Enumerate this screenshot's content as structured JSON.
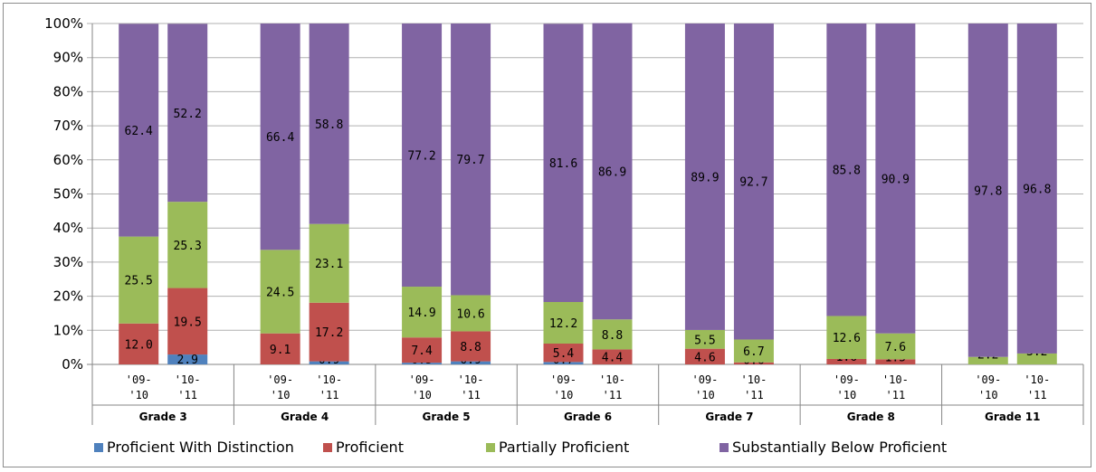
{
  "chart_data": {
    "type": "bar",
    "stacked": true,
    "percent": true,
    "title": "",
    "xlabel": "",
    "ylabel": "",
    "ylim": [
      0,
      100
    ],
    "yticks": [
      "0%",
      "10%",
      "20%",
      "30%",
      "40%",
      "50%",
      "60%",
      "70%",
      "80%",
      "90%",
      "100%"
    ],
    "groups": [
      "Grade 3",
      "Grade 4",
      "Grade 5",
      "Grade 6",
      "Grade 7",
      "Grade 8",
      "Grade 11"
    ],
    "bars": [
      {
        "group": 0,
        "label": [
          "'09-",
          "'10"
        ],
        "values": [
          0,
          12.0,
          25.5,
          62.4
        ],
        "labels": [
          null,
          "12.0",
          "25.5",
          "62.4"
        ]
      },
      {
        "group": 0,
        "label": [
          "'10-",
          "'11"
        ],
        "values": [
          2.9,
          19.5,
          25.3,
          52.2
        ],
        "labels": [
          "2.9",
          "19.5",
          "25.3",
          "52.2"
        ]
      },
      {
        "group": 1,
        "label": [
          "'09-",
          "'10"
        ],
        "values": [
          0,
          9.1,
          24.5,
          66.4
        ],
        "labels": [
          null,
          "9.1",
          "24.5",
          "66.4"
        ]
      },
      {
        "group": 1,
        "label": [
          "'10-",
          "'11"
        ],
        "values": [
          0.9,
          17.2,
          23.1,
          58.8
        ],
        "labels": [
          "0.9",
          "17.2",
          "23.1",
          "58.8"
        ]
      },
      {
        "group": 2,
        "label": [
          "'09-",
          "'10"
        ],
        "values": [
          0.5,
          7.4,
          14.9,
          77.2
        ],
        "labels": [
          "0.5",
          "7.4",
          "14.9",
          "77.2"
        ]
      },
      {
        "group": 2,
        "label": [
          "'10-",
          "'11"
        ],
        "values": [
          0.9,
          8.8,
          10.6,
          79.7
        ],
        "labels": [
          "0.9",
          "8.8",
          "10.6",
          "79.7"
        ]
      },
      {
        "group": 3,
        "label": [
          "'09-",
          "'10"
        ],
        "values": [
          0.7,
          5.4,
          12.2,
          81.6
        ],
        "labels": [
          "0.7",
          "5.4",
          "12.2",
          "81.6"
        ]
      },
      {
        "group": 3,
        "label": [
          "'10-",
          "'11"
        ],
        "values": [
          0,
          4.4,
          8.8,
          86.9
        ],
        "labels": [
          null,
          "4.4",
          "8.8",
          "86.9"
        ]
      },
      {
        "group": 4,
        "label": [
          "'09-",
          "'10"
        ],
        "values": [
          0,
          4.6,
          5.5,
          89.9
        ],
        "labels": [
          null,
          "4.6",
          "5.5",
          "89.9"
        ]
      },
      {
        "group": 4,
        "label": [
          "'10-",
          "'11"
        ],
        "values": [
          0,
          0.6,
          6.7,
          92.7
        ],
        "labels": [
          null,
          "0.6",
          "6.7",
          "92.7"
        ]
      },
      {
        "group": 5,
        "label": [
          "'09-",
          "'10"
        ],
        "values": [
          0,
          1.6,
          12.6,
          85.8
        ],
        "labels": [
          null,
          "1.6",
          "12.6",
          "85.8"
        ]
      },
      {
        "group": 5,
        "label": [
          "'10-",
          "'11"
        ],
        "values": [
          0,
          1.5,
          7.6,
          90.9
        ],
        "labels": [
          null,
          "1.5",
          "7.6",
          "90.9"
        ]
      },
      {
        "group": 6,
        "label": [
          "'09-",
          "'10"
        ],
        "values": [
          0,
          0,
          2.2,
          97.8
        ],
        "labels": [
          null,
          null,
          "2.2",
          "97.8"
        ]
      },
      {
        "group": 6,
        "label": [
          "'10-",
          "'11"
        ],
        "values": [
          0,
          0,
          3.2,
          96.8
        ],
        "labels": [
          null,
          null,
          "3.2",
          "96.8"
        ]
      }
    ],
    "series": [
      {
        "name": "Proficient With Distinction",
        "color": "#4f81bd"
      },
      {
        "name": "Proficient",
        "color": "#c0504d"
      },
      {
        "name": "Partially Proficient",
        "color": "#9bbb59"
      },
      {
        "name": "Substantially Below Proficient",
        "color": "#8064a2"
      }
    ],
    "legend_position": "bottom",
    "grid": true
  }
}
